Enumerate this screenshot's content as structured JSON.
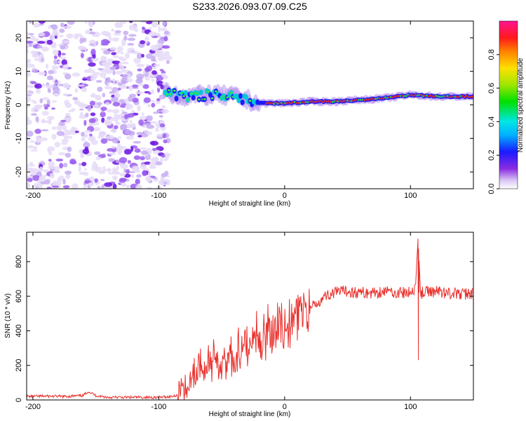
{
  "title": "S233.2026.093.07.09.C25",
  "chart_data": [
    {
      "type": "heatmap",
      "name": "spectrogram",
      "xlabel": "Height of straight line (km)",
      "ylabel": "Frequency (Hz)",
      "xlim": [
        -205,
        150
      ],
      "ylim": [
        -25,
        25
      ],
      "xticks": [
        -200,
        -100,
        0,
        100
      ],
      "yticks": [
        -20,
        -10,
        0,
        10,
        20
      ],
      "colorbar": {
        "label": "Normalized spectral amplitude",
        "range": [
          0,
          1
        ],
        "ticks": [
          0.0,
          0.2,
          0.4,
          0.6,
          0.8
        ]
      },
      "ridge": {
        "description_points_x": [
          -95,
          -80,
          -60,
          -40,
          -20,
          0,
          20,
          40,
          60,
          80,
          100,
          120,
          150
        ],
        "frequency_hz": [
          4,
          2.5,
          3,
          2.5,
          0.5,
          0.5,
          1,
          1,
          1.5,
          2,
          3,
          2.5,
          2.5
        ]
      }
    },
    {
      "type": "line",
      "name": "snr",
      "xlabel": "Height of straight line (km)",
      "ylabel": "SNR (10 * v/v)",
      "xlim": [
        -205,
        150
      ],
      "ylim": [
        0,
        970
      ],
      "xticks": [
        -200,
        -100,
        0,
        100
      ],
      "yticks": [
        0,
        200,
        400,
        600,
        800
      ],
      "color": "#e8302c",
      "series": [
        {
          "name": "SNR",
          "x": [
            -205,
            -190,
            -175,
            -160,
            -156,
            -150,
            -140,
            -120,
            -100,
            -90,
            -85,
            -80,
            -75,
            -70,
            -65,
            -60,
            -55,
            -50,
            -45,
            -40,
            -35,
            -30,
            -25,
            -20,
            -15,
            -10,
            -5,
            0,
            5,
            10,
            15,
            20,
            25,
            30,
            35,
            40,
            50,
            60,
            70,
            80,
            90,
            100,
            104,
            106,
            108,
            110,
            120,
            130,
            140,
            150
          ],
          "y": [
            20,
            22,
            20,
            25,
            50,
            25,
            15,
            15,
            15,
            20,
            30,
            60,
            120,
            180,
            200,
            180,
            220,
            210,
            220,
            250,
            280,
            300,
            330,
            340,
            350,
            380,
            420,
            380,
            420,
            480,
            500,
            520,
            560,
            590,
            610,
            620,
            630,
            620,
            620,
            630,
            620,
            620,
            650,
            940,
            620,
            620,
            630,
            620,
            610,
            620
          ]
        }
      ]
    }
  ]
}
